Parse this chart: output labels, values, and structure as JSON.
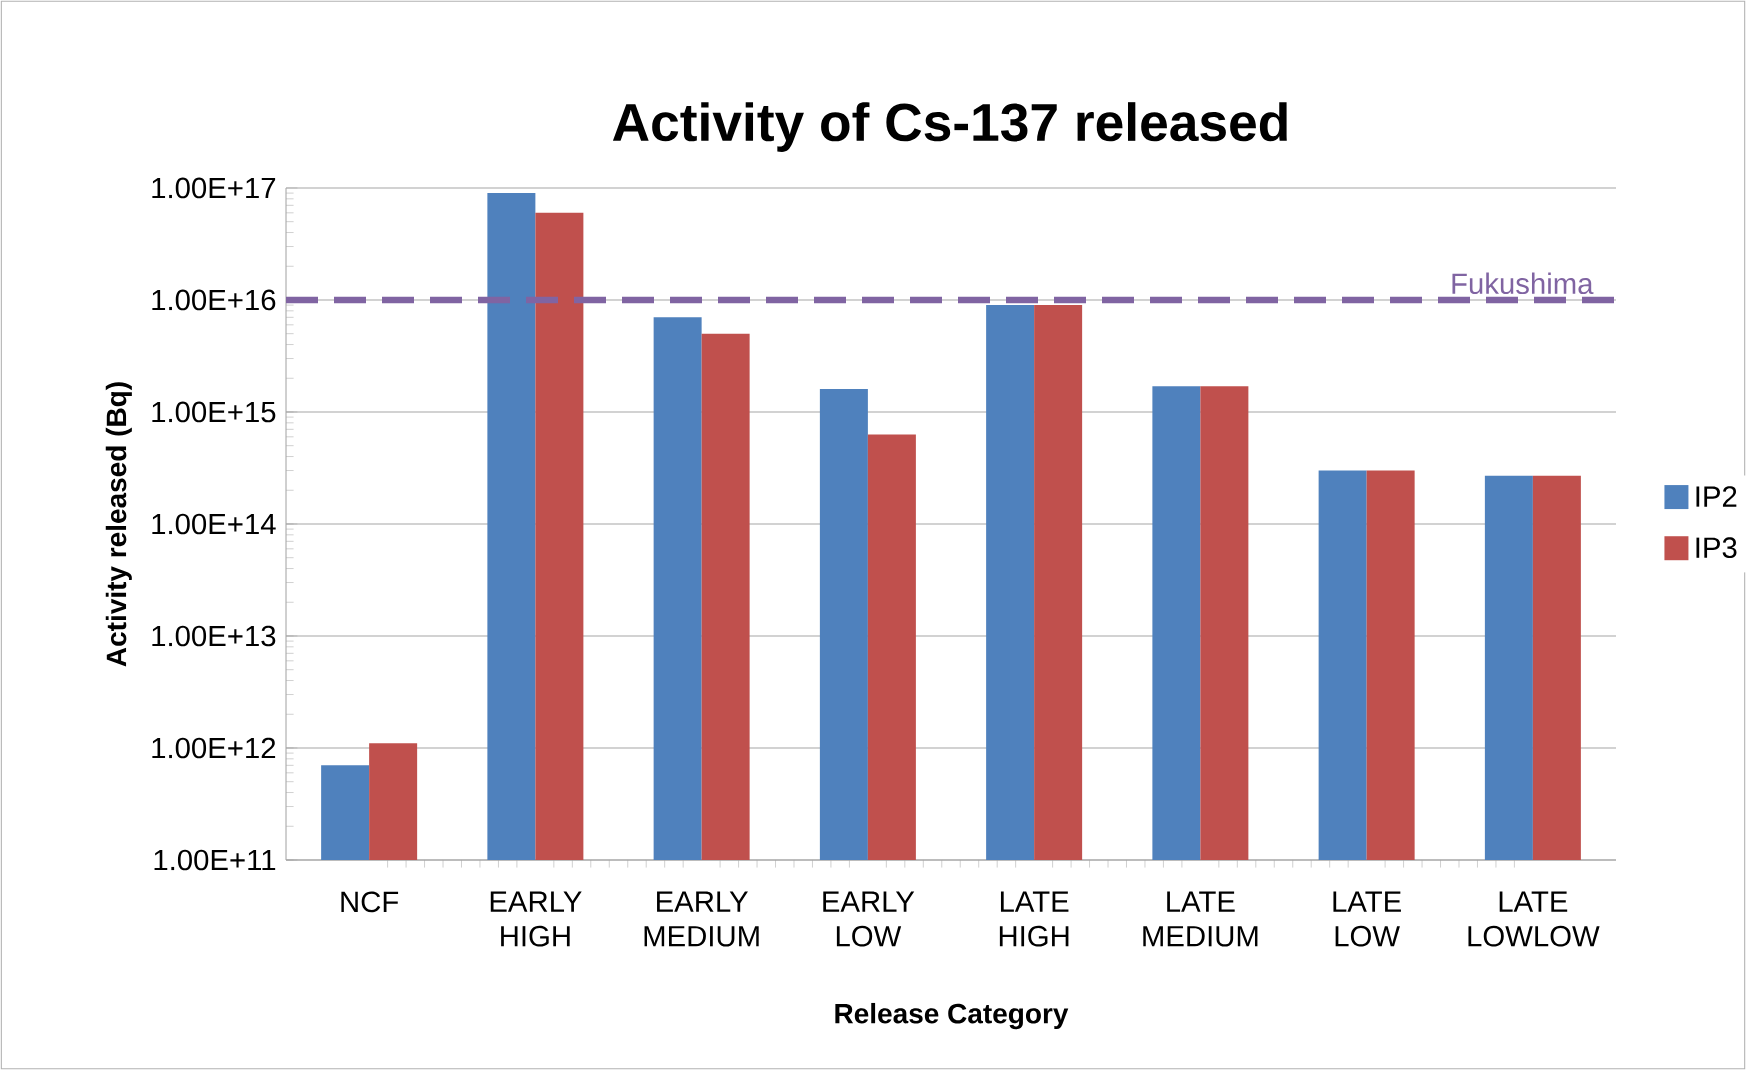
{
  "chart_data": {
    "type": "bar",
    "title": "Activity of Cs-137 released",
    "xlabel": "Release Category",
    "ylabel": "Activity released (Bq)",
    "categories": [
      "NCF",
      "EARLY HIGH",
      "EARLY MEDIUM",
      "EARLY LOW",
      "LATE HIGH",
      "LATE MEDIUM",
      "LATE LOW",
      "LATE LOWLOW"
    ],
    "series": [
      {
        "name": "IP2",
        "color": "#4f81bd",
        "values": [
          700000000000.0,
          9e+16,
          7000000000000000.0,
          1600000000000000.0,
          9000000000000000.0,
          1700000000000000.0,
          300000000000000.0,
          270000000000000.0
        ]
      },
      {
        "name": "IP3",
        "color": "#c0504d",
        "values": [
          1100000000000.0,
          6e+16,
          5000000000000000.0,
          630000000000000.0,
          9000000000000000.0,
          1700000000000000.0,
          300000000000000.0,
          270000000000000.0
        ]
      }
    ],
    "log": "y",
    "ylim": [
      100000000000.0,
      1e+17
    ],
    "yticks": [
      {
        "value": 100000000000.0,
        "label": "1.00E+11"
      },
      {
        "value": 1000000000000.0,
        "label": "1.00E+12"
      },
      {
        "value": 10000000000000.0,
        "label": "1.00E+13"
      },
      {
        "value": 100000000000000.0,
        "label": "1.00E+14"
      },
      {
        "value": 1000000000000000.0,
        "label": "1.00E+15"
      },
      {
        "value": 1e+16,
        "label": "1.00E+16"
      },
      {
        "value": 1e+17,
        "label": "1.00E+17"
      }
    ],
    "ref_lines": [
      {
        "axis": "y",
        "value": 1e+16,
        "label": "Fukushima",
        "color": "#8064a2",
        "line_style": "dashed"
      }
    ],
    "grid": "y",
    "legend": "right"
  }
}
